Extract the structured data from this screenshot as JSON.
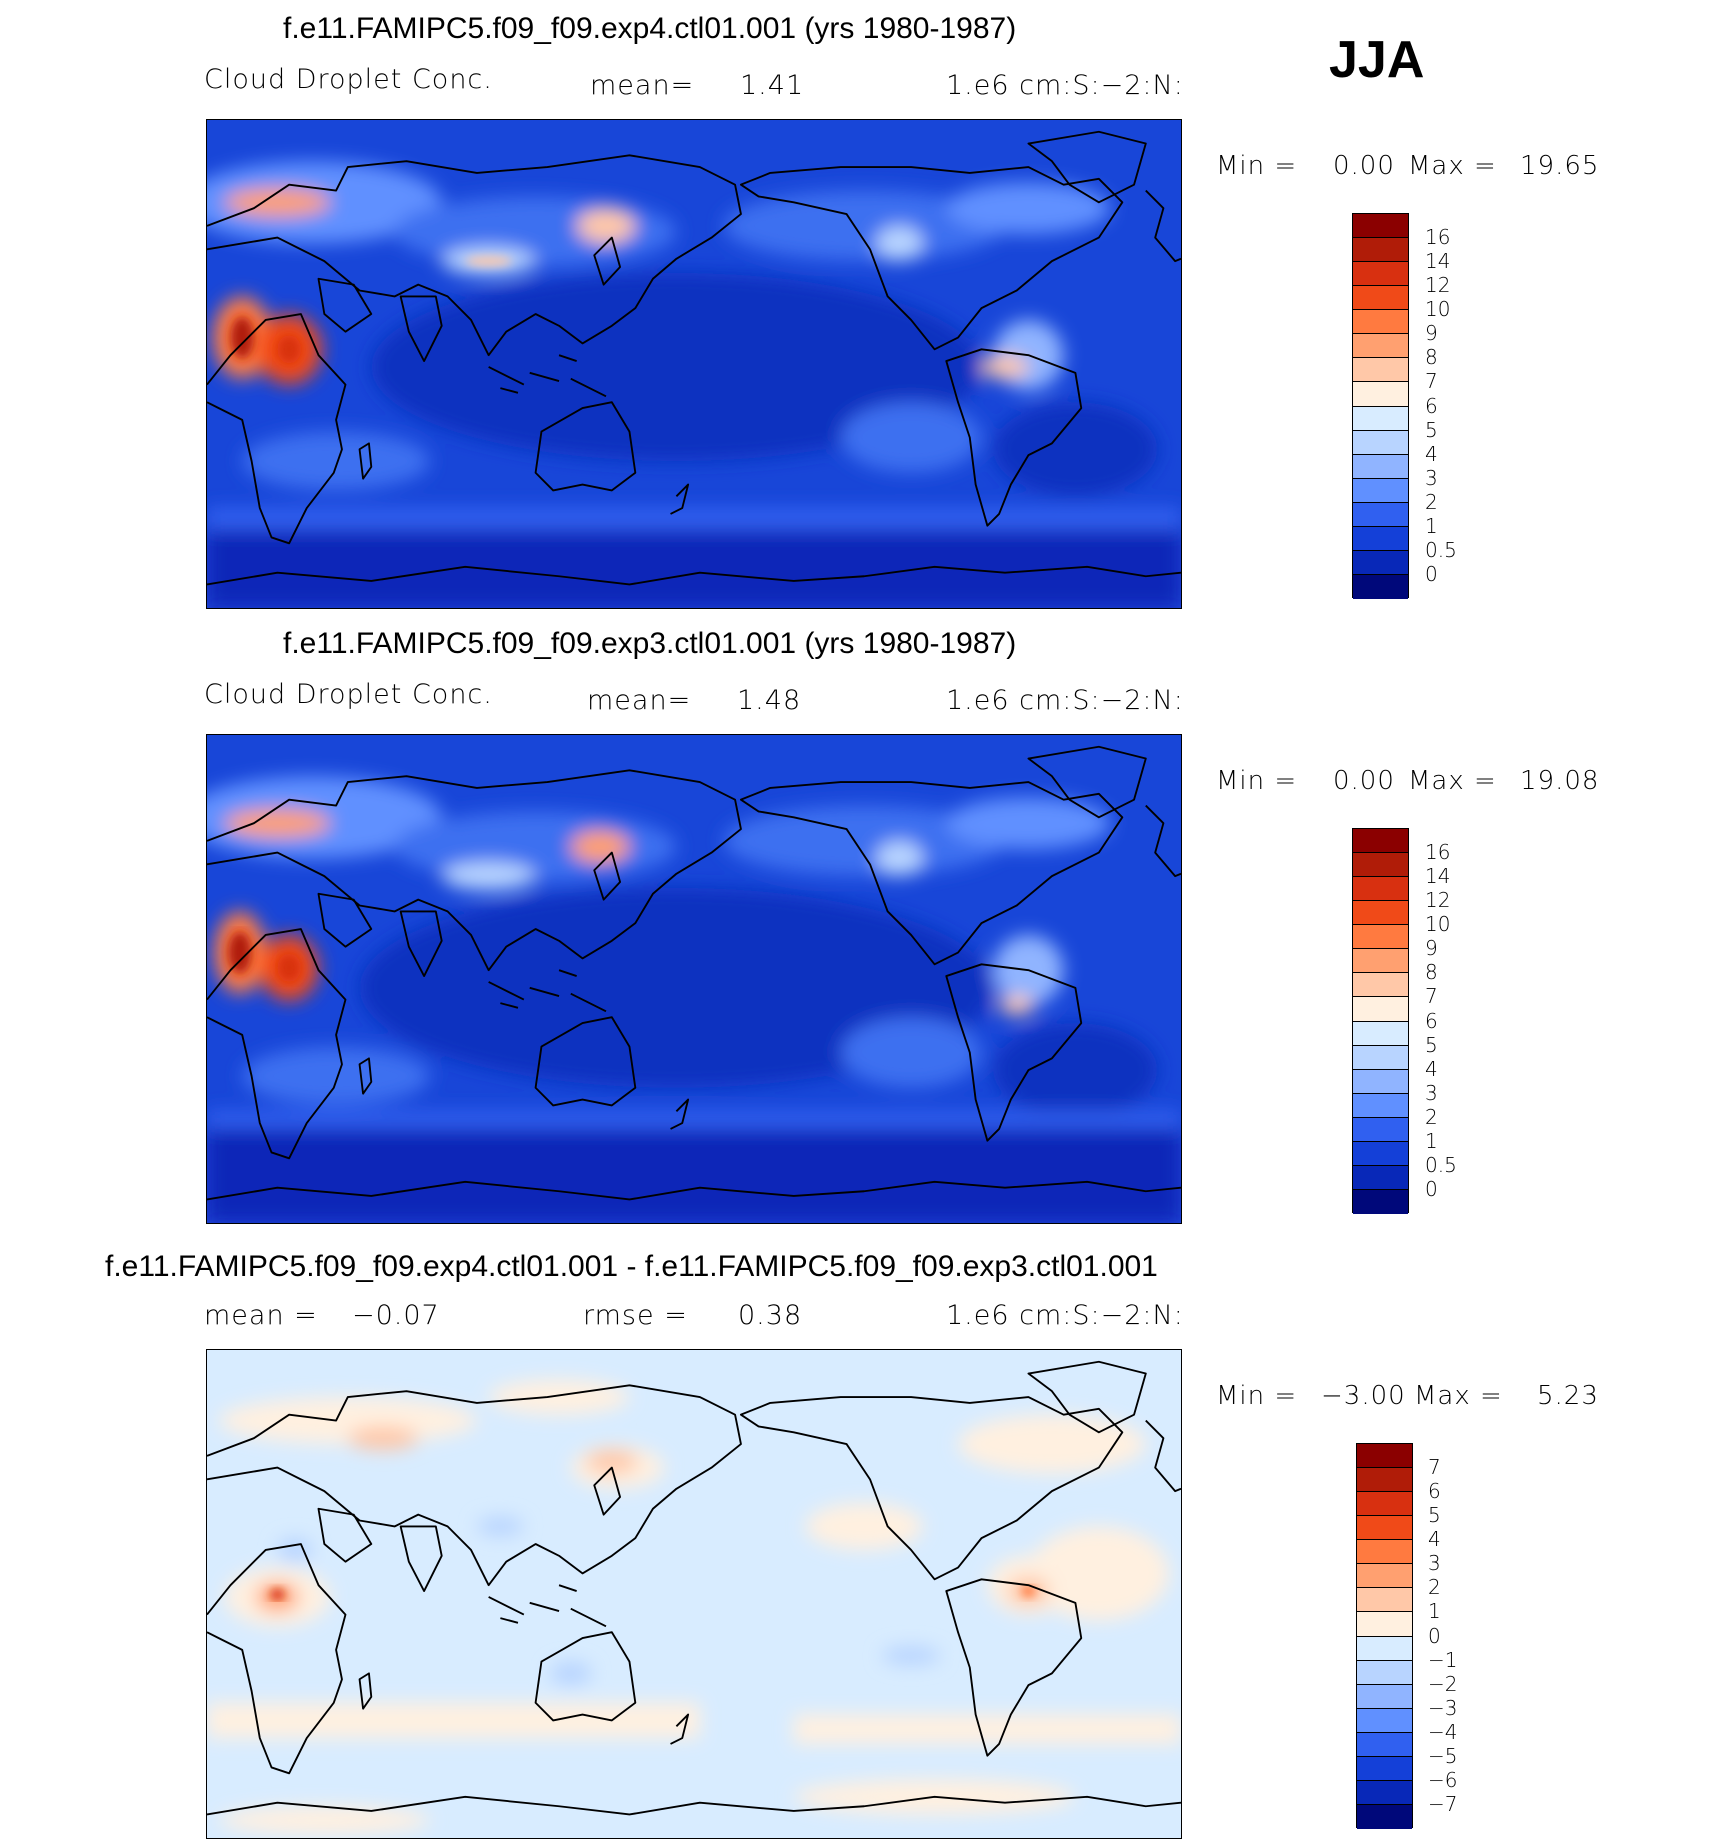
{
  "season": "JJA",
  "panels": [
    {
      "title": "f.e11.FAMIPC5.f09_f09.exp4.ctl01.001 (yrs 1980-1987)",
      "variable": "Cloud Droplet Conc.",
      "mean_label": "mean=",
      "mean_value": "1.41",
      "units": "1.e6 cm:S:−2:N:",
      "min_label": "Min =",
      "min_value": "0.00",
      "max_label": "Max =",
      "max_value": "19.65"
    },
    {
      "title": "f.e11.FAMIPC5.f09_f09.exp3.ctl01.001 (yrs 1980-1987)",
      "variable": "Cloud Droplet Conc.",
      "mean_label": "mean=",
      "mean_value": "1.48",
      "units": "1.e6 cm:S:−2:N:",
      "min_label": "Min =",
      "min_value": "0.00",
      "max_label": "Max =",
      "max_value": "19.08"
    },
    {
      "title": "f.e11.FAMIPC5.f09_f09.exp4.ctl01.001 - f.e11.FAMIPC5.f09_f09.exp3.ctl01.001",
      "mean_label": "mean =",
      "mean_value": "−0.07",
      "rmse_label": "rmse =",
      "rmse_value": "0.38",
      "units": "1.e6 cm:S:−2:N:",
      "min_label": "Min =",
      "min_value": "−3.00",
      "max_label": "Max =",
      "max_value": "5.23"
    }
  ],
  "colorbars": {
    "abs": {
      "levels": [
        "16",
        "14",
        "12",
        "10",
        "9",
        "8",
        "7",
        "6",
        "5",
        "4",
        "3",
        "2",
        "1",
        "0.5",
        "0"
      ],
      "colors": [
        "#8b0000",
        "#b01c08",
        "#d83010",
        "#f04a18",
        "#ff7a40",
        "#ffa070",
        "#ffc8a8",
        "#fff0e0",
        "#d8ecff",
        "#b8d4ff",
        "#90b4ff",
        "#6090ff",
        "#3060f0",
        "#1440d8",
        "#0828b8",
        "#00087a"
      ]
    },
    "diff": {
      "levels": [
        "7",
        "6",
        "5",
        "4",
        "3",
        "2",
        "1",
        "0",
        "−1",
        "−2",
        "−3",
        "−4",
        "−5",
        "−6",
        "−7"
      ],
      "colors": [
        "#8b0000",
        "#b01c08",
        "#d83010",
        "#f04a18",
        "#ff7a40",
        "#ffa070",
        "#ffc8a8",
        "#fff0e0",
        "#d8ecff",
        "#b8d4ff",
        "#90b4ff",
        "#6090ff",
        "#3060f0",
        "#1440d8",
        "#0828b8",
        "#00087a"
      ]
    }
  }
}
